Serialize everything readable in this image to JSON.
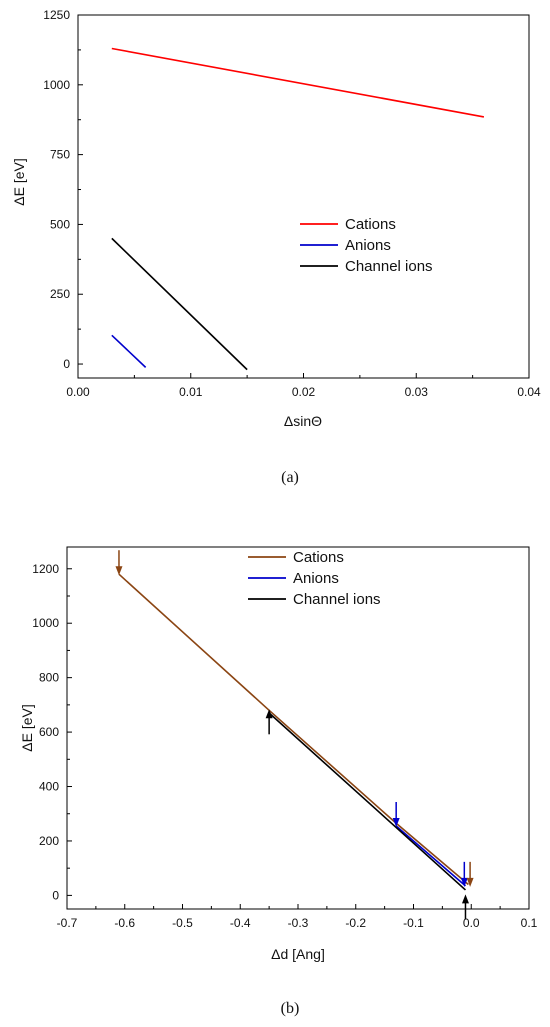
{
  "chart_data": [
    {
      "type": "line",
      "panel_label": "(a)",
      "xlabel": "ΔsinΘ",
      "ylabel": "ΔE [eV]",
      "xlim": [
        0.0,
        0.04
      ],
      "ylim": [
        -50,
        1250
      ],
      "x_ticks": [
        "0.00",
        "0.01",
        "0.02",
        "0.03",
        "0.04"
      ],
      "y_ticks": [
        "0",
        "250",
        "500",
        "750",
        "1000",
        "1250"
      ],
      "legend_position": "center-right",
      "series": [
        {
          "name": "Cations",
          "color": "#ff0000",
          "x": [
            0.003,
            0.036
          ],
          "y": [
            1130,
            885
          ]
        },
        {
          "name": "Anions",
          "color": "#0000cc",
          "x": [
            0.003,
            0.006
          ],
          "y": [
            103,
            -12
          ]
        },
        {
          "name": "Channel ions",
          "color": "#000000",
          "x": [
            0.003,
            0.015
          ],
          "y": [
            450,
            -20
          ]
        }
      ]
    },
    {
      "type": "line",
      "panel_label": "(b)",
      "xlabel": "Δd [Ang]",
      "ylabel": "ΔE [eV]",
      "xlim": [
        -0.7,
        0.1
      ],
      "ylim": [
        -50,
        1280
      ],
      "x_ticks": [
        "-0.7",
        "-0.6",
        "-0.5",
        "-0.4",
        "-0.3",
        "-0.2",
        "-0.1",
        "0.0",
        "0.1"
      ],
      "y_ticks": [
        "0",
        "200",
        "400",
        "600",
        "800",
        "1000",
        "1200"
      ],
      "legend_position": "top-right",
      "series": [
        {
          "name": "Cations",
          "color": "#8b4513",
          "x": [
            -0.61,
            -0.35,
            -0.13,
            -0.005
          ],
          "y": [
            1180,
            680,
            265,
            40
          ]
        },
        {
          "name": "Anions",
          "color": "#0000cc",
          "x": [
            -0.13,
            -0.01
          ],
          "y": [
            255,
            35
          ]
        },
        {
          "name": "Channel ions",
          "color": "#000000",
          "x": [
            -0.35,
            -0.01
          ],
          "y": [
            670,
            20
          ]
        }
      ],
      "arrows": [
        {
          "color": "#8b4513",
          "x": -0.61,
          "y": 1180,
          "direction": "down"
        },
        {
          "color": "#000000",
          "x": -0.35,
          "y": 680,
          "direction": "up"
        },
        {
          "color": "#0000cc",
          "x": -0.13,
          "y": 255,
          "direction": "down"
        },
        {
          "color": "#0000cc",
          "x": -0.012,
          "y": 35,
          "direction": "down"
        },
        {
          "color": "#8b4513",
          "x": -0.002,
          "y": 35,
          "direction": "down"
        },
        {
          "color": "#000000",
          "x": -0.01,
          "y": 0,
          "direction": "up"
        }
      ]
    }
  ]
}
